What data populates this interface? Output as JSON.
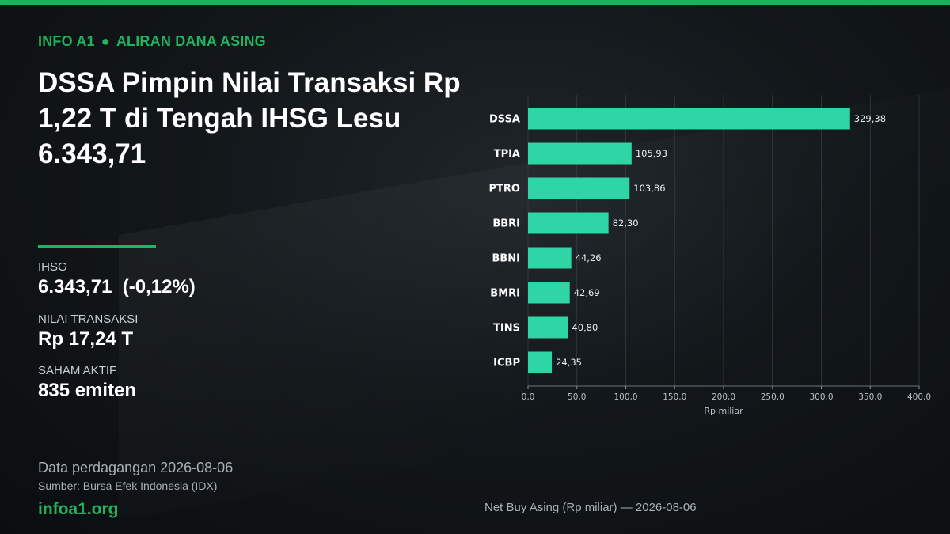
{
  "header": {
    "brand_tag": "INFO A1",
    "separator": "●",
    "section": "ALIRAN DANA ASING"
  },
  "headline": "DSSA Pimpin Nilai Transaksi Rp 1,22 T di Tengah IHSG Lesu 6.343,71",
  "stats": {
    "ihsg_label": "IHSG",
    "ihsg_value": "6.343,71  (-0,12%)",
    "turnover_label": "NILAI TRANSAKSI",
    "turnover_value": "Rp 17,24 T",
    "active_label": "SAHAM AKTIF",
    "active_value": "835 emiten"
  },
  "footer": {
    "date_line": "Data perdagangan 2026-08-06",
    "source_line": "Sumber: Bursa Efek Indonesia (IDX)",
    "brand": "infoa1.org"
  },
  "colors": {
    "accent": "#22b35e",
    "bar": "#2ed6a6"
  },
  "chart_data": {
    "type": "bar",
    "orientation": "horizontal",
    "categories": [
      "DSSA",
      "TPIA",
      "PTRO",
      "BBRI",
      "BBNI",
      "BMRI",
      "TINS",
      "ICBP"
    ],
    "values": [
      329.38,
      105.93,
      103.86,
      82.3,
      44.26,
      42.69,
      40.8,
      24.35
    ],
    "value_labels": [
      "329,38",
      "105,93",
      "103,86",
      "82,30",
      "44,26",
      "42,69",
      "40,80",
      "24,35"
    ],
    "xlim": [
      0,
      400
    ],
    "xticks": [
      0,
      50,
      100,
      150,
      200,
      250,
      300,
      350,
      400
    ],
    "xtick_labels": [
      "0,0",
      "50,0",
      "100,0",
      "150,0",
      "200,0",
      "250,0",
      "300,0",
      "350,0",
      "400,0"
    ],
    "xlabel": "Rp miliar",
    "grid": true,
    "caption": "Net Buy Asing (Rp miliar) — 2026-08-06"
  }
}
